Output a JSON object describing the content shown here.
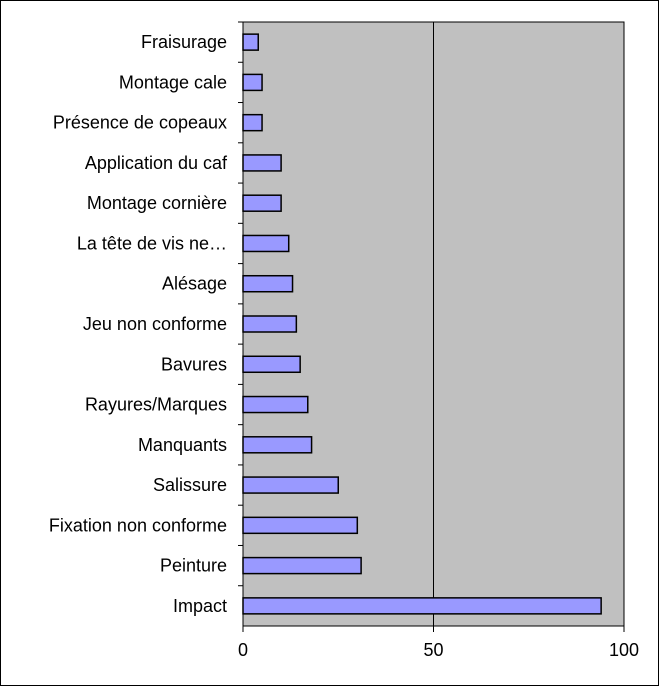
{
  "chart_data": {
    "type": "bar",
    "orientation": "horizontal",
    "categories": [
      "Fraisurage",
      "Montage cale",
      "Présence de copeaux",
      "Application du caf",
      "Montage cornière",
      "La tête de vis ne…",
      "Alésage",
      "Jeu non conforme",
      "Bavures",
      "Rayures/Marques",
      "Manquants",
      "Salissure",
      "Fixation non conforme",
      "Peinture",
      "Impact"
    ],
    "values": [
      4,
      5,
      5,
      10,
      10,
      12,
      13,
      14,
      15,
      17,
      18,
      25,
      30,
      31,
      94
    ],
    "xlim": [
      0,
      100
    ],
    "x_ticks": [
      "0",
      "50",
      "100"
    ],
    "grid": "vertical major gridlines",
    "legend": "none",
    "colors": {
      "bar_fill": "#9999ff",
      "bar_stroke": "#000000",
      "plot_background": "#c0c0c0",
      "gridline": "#000000"
    }
  }
}
